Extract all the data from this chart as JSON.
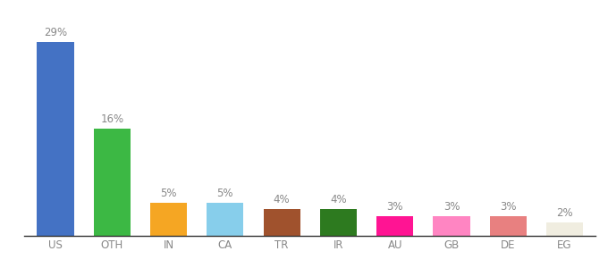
{
  "categories": [
    "US",
    "OTH",
    "IN",
    "CA",
    "TR",
    "IR",
    "AU",
    "GB",
    "DE",
    "EG"
  ],
  "values": [
    29,
    16,
    5,
    5,
    4,
    4,
    3,
    3,
    3,
    2
  ],
  "bar_colors": [
    "#4472c4",
    "#3cb844",
    "#f5a623",
    "#87ceeb",
    "#a0522d",
    "#2d7a1f",
    "#ff1493",
    "#ff85c2",
    "#e88080",
    "#f0ede0"
  ],
  "ylim": [
    0,
    32
  ],
  "background_color": "#ffffff",
  "label_fontsize": 8.5,
  "tick_fontsize": 8.5,
  "label_color": "#888888"
}
